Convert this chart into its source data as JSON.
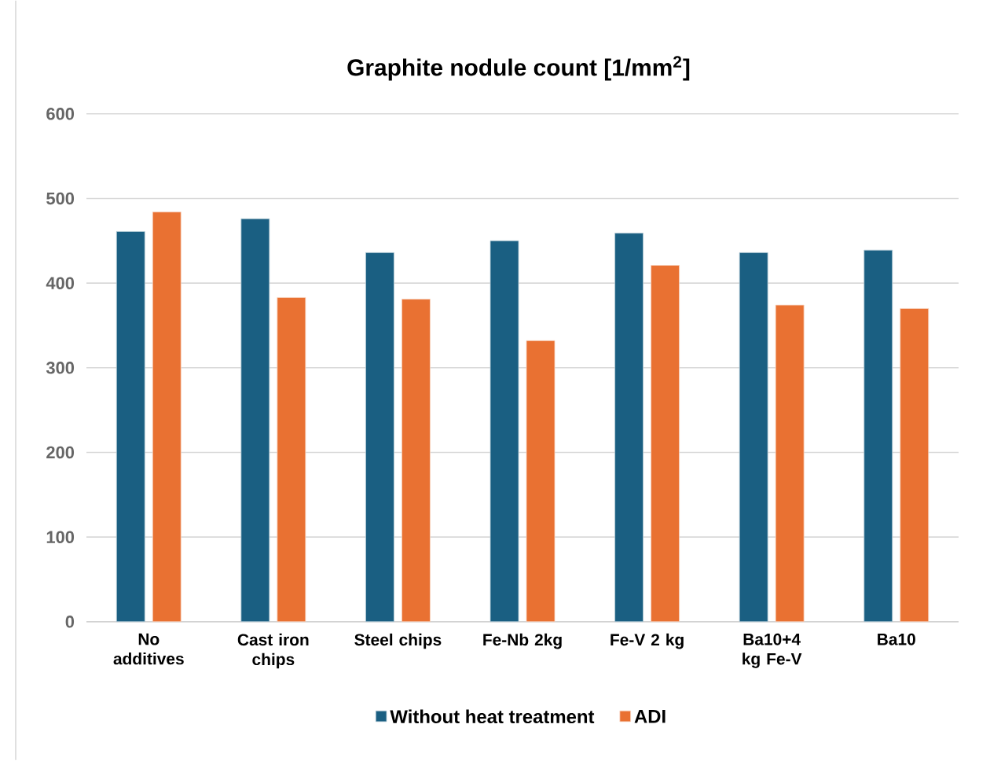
{
  "chart_data": {
    "type": "bar",
    "title": "Graphite nodule count [1/mm$^{2}$]",
    "categories": [
      "No additives",
      "Cast iron chips",
      "Steel chips",
      "Fe-Nb 2kg",
      "Fe-V 2 kg",
      "Ba10+4 kg Fe-V",
      "Ba10"
    ],
    "series": [
      {
        "name": "Without heat treatment",
        "color": "#1a5f82",
        "values": [
          461,
          476,
          436,
          450,
          459,
          436,
          439
        ]
      },
      {
        "name": "ADI",
        "color": "#e97132",
        "values": [
          484,
          383,
          381,
          332,
          421,
          374,
          370
        ]
      }
    ],
    "ylim": [
      0,
      600
    ],
    "yticks": [
      0,
      100,
      200,
      300,
      400,
      500,
      600
    ],
    "grid": "y",
    "legend": "bottom"
  }
}
